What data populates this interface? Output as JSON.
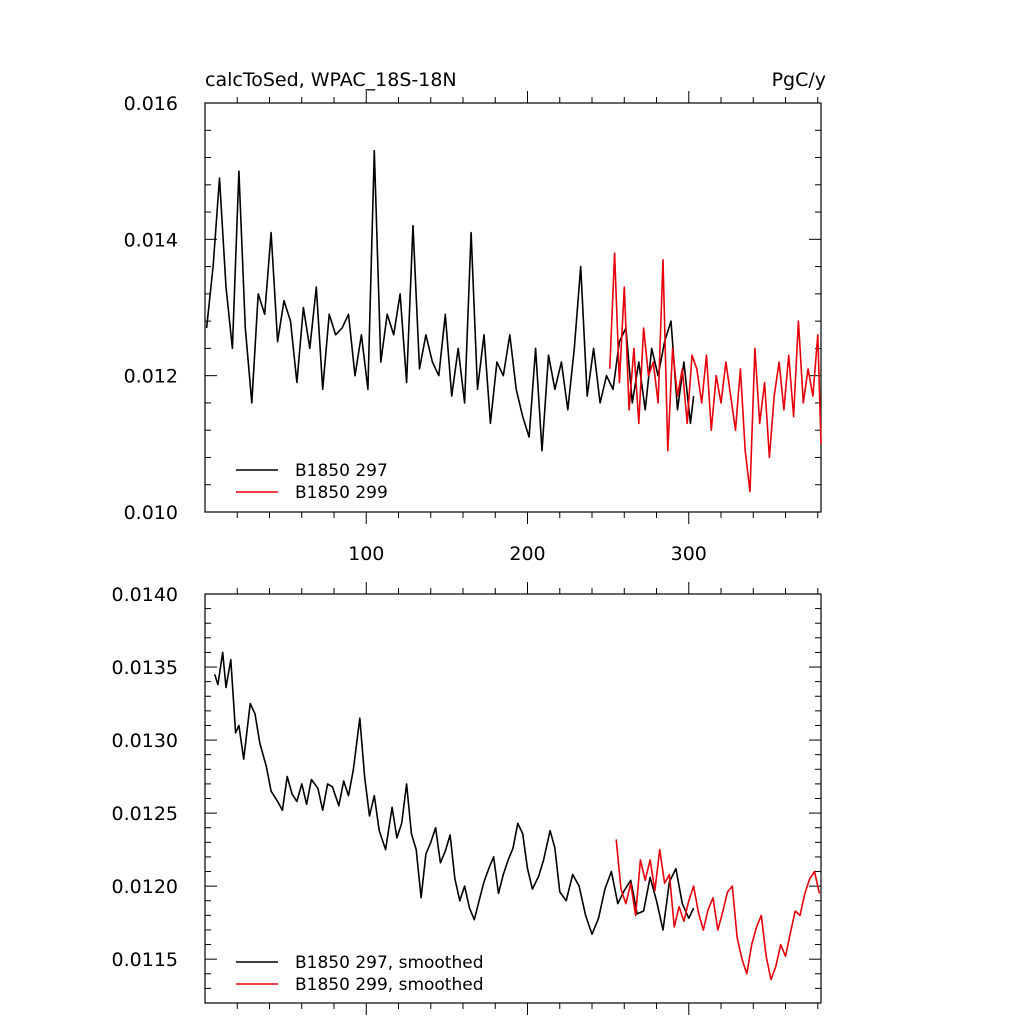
{
  "chart_data": [
    {
      "type": "line",
      "title_left": "calcToSed, WPAC_18S-18N",
      "title_right": "PgC/y",
      "xlim": [
        0,
        382
      ],
      "ylim": [
        0.01,
        0.016
      ],
      "xticks": [
        100,
        200,
        300
      ],
      "xtick_labels": [
        "100",
        "200",
        "300"
      ],
      "yticks": [
        0.01,
        0.012,
        0.014,
        0.016
      ],
      "ytick_labels": [
        "0.010",
        "0.012",
        "0.014",
        "0.016"
      ],
      "legend_position": "bottom-left",
      "series": [
        {
          "name": "B1850 297",
          "color": "#000000",
          "x": [
            1,
            5,
            9,
            13,
            17,
            21,
            25,
            29,
            33,
            37,
            41,
            45,
            49,
            53,
            57,
            61,
            65,
            69,
            73,
            77,
            81,
            85,
            89,
            93,
            97,
            101,
            105,
            109,
            113,
            117,
            121,
            125,
            129,
            133,
            137,
            141,
            145,
            149,
            153,
            157,
            161,
            165,
            169,
            173,
            177,
            181,
            185,
            189,
            193,
            197,
            201,
            205,
            209,
            213,
            217,
            221,
            225,
            229,
            233,
            237,
            241,
            245,
            249,
            253,
            257,
            261,
            265,
            269,
            273,
            277,
            281,
            285,
            289,
            293,
            297,
            301,
            303
          ],
          "values": [
            0.0127,
            0.0136,
            0.0149,
            0.0133,
            0.0124,
            0.015,
            0.0127,
            0.0116,
            0.0132,
            0.0129,
            0.0141,
            0.0125,
            0.0131,
            0.0128,
            0.0119,
            0.013,
            0.0124,
            0.0133,
            0.0118,
            0.0129,
            0.0126,
            0.0127,
            0.0129,
            0.012,
            0.0126,
            0.0118,
            0.0153,
            0.0122,
            0.0129,
            0.0126,
            0.0132,
            0.0119,
            0.0142,
            0.0121,
            0.0126,
            0.0122,
            0.012,
            0.0129,
            0.0117,
            0.0124,
            0.0116,
            0.0141,
            0.0118,
            0.0126,
            0.0113,
            0.0122,
            0.012,
            0.0126,
            0.0118,
            0.0114,
            0.0111,
            0.0124,
            0.0109,
            0.0123,
            0.0118,
            0.0122,
            0.0115,
            0.0124,
            0.0136,
            0.0117,
            0.0124,
            0.0116,
            0.012,
            0.0118,
            0.0125,
            0.0127,
            0.0116,
            0.0122,
            0.0115,
            0.0124,
            0.012,
            0.0125,
            0.0128,
            0.0115,
            0.0122,
            0.0113,
            0.0117
          ]
        },
        {
          "name": "B1850 299",
          "color": "#e8000b",
          "x": [
            251,
            254,
            257,
            260,
            263,
            266,
            269,
            272,
            275,
            278,
            281,
            284,
            287,
            290,
            293,
            296,
            299,
            302,
            305,
            308,
            311,
            314,
            317,
            320,
            323,
            326,
            329,
            332,
            335,
            338,
            341,
            344,
            347,
            350,
            353,
            356,
            359,
            362,
            365,
            368,
            371,
            374,
            377,
            380,
            382
          ],
          "values": [
            0.0121,
            0.0138,
            0.0119,
            0.0133,
            0.0115,
            0.0124,
            0.0113,
            0.0127,
            0.012,
            0.0122,
            0.0116,
            0.0137,
            0.0109,
            0.0124,
            0.0117,
            0.0121,
            0.0113,
            0.0123,
            0.0121,
            0.0116,
            0.0123,
            0.0112,
            0.012,
            0.0116,
            0.0122,
            0.0117,
            0.0112,
            0.0121,
            0.0109,
            0.0103,
            0.0124,
            0.0113,
            0.0119,
            0.0108,
            0.0117,
            0.0122,
            0.0115,
            0.0123,
            0.0114,
            0.0128,
            0.0116,
            0.0121,
            0.0117,
            0.0126,
            0.011
          ]
        }
      ]
    },
    {
      "type": "line",
      "xlim": [
        0,
        382
      ],
      "ylim": [
        0.0112,
        0.014
      ],
      "yticks": [
        0.0115,
        0.012,
        0.0125,
        0.013,
        0.0135,
        0.014
      ],
      "ytick_labels": [
        "0.0115",
        "0.0120",
        "0.0125",
        "0.0130",
        "0.0135",
        "0.0140"
      ],
      "legend_position": "bottom-left",
      "series": [
        {
          "name": "B1850 297, smoothed",
          "color": "#000000",
          "x": [
            6,
            8,
            11,
            13,
            16,
            19,
            21,
            24,
            28,
            31,
            34,
            38,
            41,
            45,
            48,
            51,
            54,
            57,
            60,
            63,
            66,
            70,
            73,
            76,
            79,
            83,
            86,
            89,
            92,
            96,
            99,
            102,
            105,
            108,
            112,
            116,
            119,
            122,
            125,
            128,
            131,
            134,
            137,
            140,
            143,
            146,
            149,
            152,
            155,
            158,
            161,
            164,
            167,
            170,
            173,
            176,
            179,
            182,
            185,
            188,
            191,
            194,
            197,
            200,
            203,
            207,
            210,
            214,
            217,
            220,
            224,
            228,
            232,
            236,
            240,
            244,
            248,
            252,
            256,
            260,
            264,
            268,
            272,
            276,
            280,
            284,
            288,
            292,
            296,
            300,
            303
          ],
          "values": [
            0.01345,
            0.01338,
            0.0136,
            0.01336,
            0.01355,
            0.01305,
            0.0131,
            0.01287,
            0.01325,
            0.01318,
            0.01298,
            0.01282,
            0.01265,
            0.01258,
            0.01252,
            0.01275,
            0.01263,
            0.01258,
            0.0127,
            0.01256,
            0.01273,
            0.01267,
            0.01252,
            0.0127,
            0.01268,
            0.01255,
            0.01272,
            0.01262,
            0.0128,
            0.01315,
            0.01275,
            0.01248,
            0.01262,
            0.01238,
            0.01225,
            0.01254,
            0.01233,
            0.01243,
            0.0127,
            0.01236,
            0.01225,
            0.01192,
            0.01222,
            0.0123,
            0.0124,
            0.01216,
            0.01224,
            0.01235,
            0.01205,
            0.0119,
            0.012,
            0.01185,
            0.01177,
            0.0119,
            0.01203,
            0.01212,
            0.0122,
            0.01195,
            0.01208,
            0.01218,
            0.01226,
            0.01243,
            0.01236,
            0.01212,
            0.01198,
            0.01207,
            0.01218,
            0.01238,
            0.01226,
            0.01196,
            0.0119,
            0.01208,
            0.012,
            0.0118,
            0.01167,
            0.01178,
            0.01198,
            0.0121,
            0.01188,
            0.01197,
            0.01204,
            0.01181,
            0.01183,
            0.01206,
            0.0119,
            0.0117,
            0.01203,
            0.01212,
            0.01188,
            0.01178,
            0.01185
          ]
        },
        {
          "name": "B1850 299, smoothed",
          "color": "#e8000b",
          "x": [
            255,
            258,
            261,
            264,
            267,
            270,
            273,
            276,
            279,
            282,
            285,
            288,
            291,
            294,
            297,
            300,
            303,
            306,
            309,
            312,
            315,
            318,
            321,
            324,
            327,
            330,
            333,
            336,
            339,
            342,
            345,
            348,
            351,
            354,
            357,
            360,
            363,
            366,
            369,
            372,
            375,
            378,
            381
          ],
          "values": [
            0.01232,
            0.01198,
            0.01188,
            0.01202,
            0.0118,
            0.01218,
            0.01204,
            0.01218,
            0.01197,
            0.01225,
            0.01202,
            0.01208,
            0.01172,
            0.01186,
            0.01176,
            0.0119,
            0.012,
            0.01182,
            0.0117,
            0.01184,
            0.01192,
            0.0117,
            0.01182,
            0.01196,
            0.012,
            0.01165,
            0.0115,
            0.0114,
            0.0116,
            0.01172,
            0.0118,
            0.01152,
            0.01136,
            0.01145,
            0.0116,
            0.01152,
            0.01168,
            0.01183,
            0.0118,
            0.01195,
            0.01205,
            0.0121,
            0.01195
          ]
        }
      ]
    }
  ]
}
